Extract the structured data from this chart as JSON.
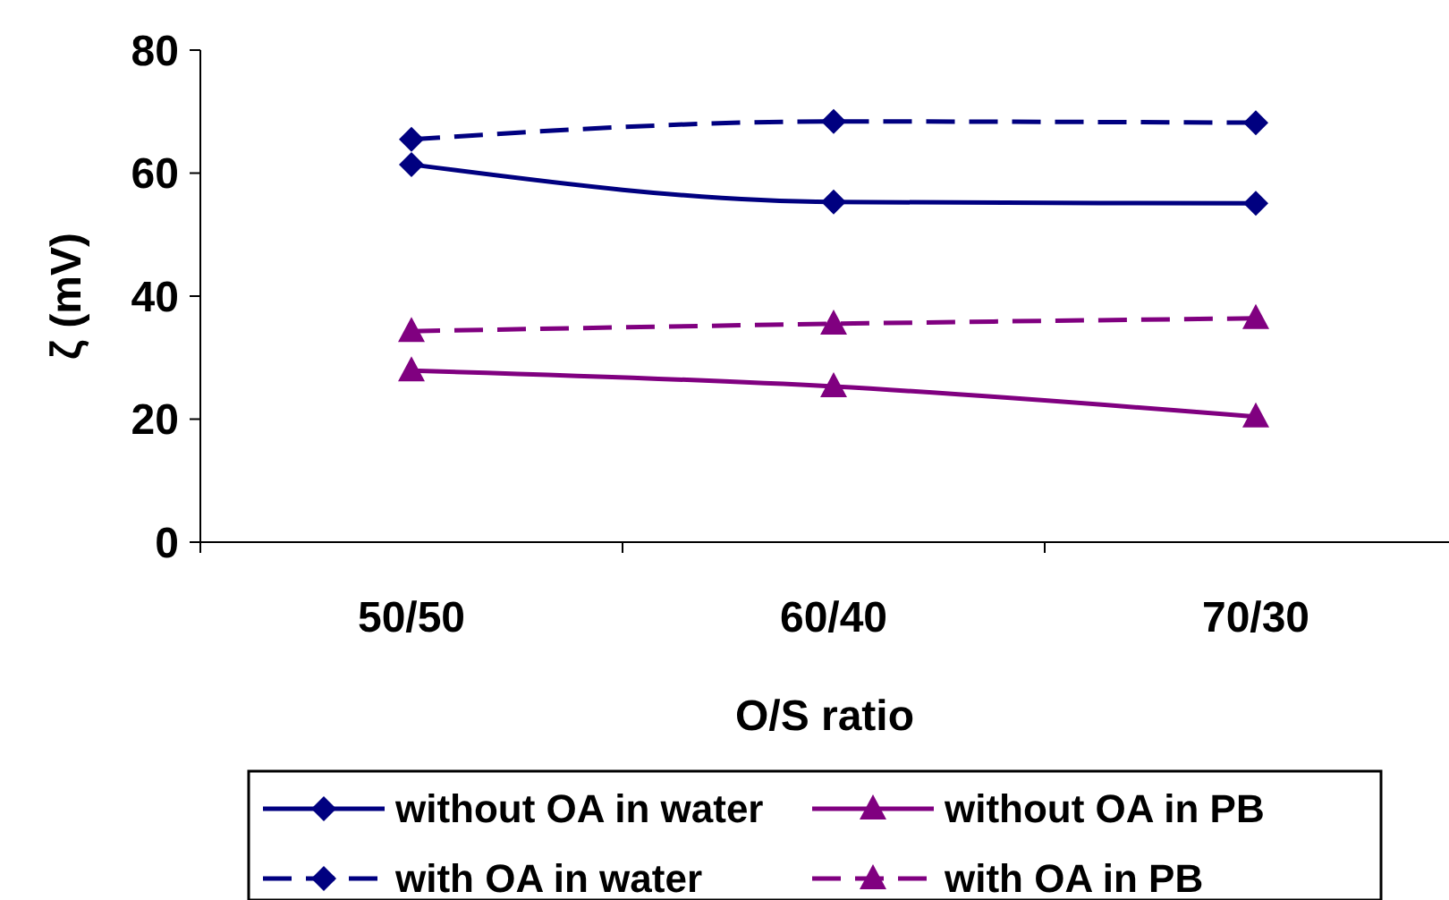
{
  "chart_data": {
    "type": "line",
    "xlabel": "O/S ratio",
    "ylabel": "ζ (mV)",
    "categories": [
      "50/50",
      "60/40",
      "70/30"
    ],
    "ylim": [
      0,
      80
    ],
    "yticks": [
      0,
      20,
      40,
      60,
      80
    ],
    "grid": false,
    "legend": "bottom",
    "series": [
      {
        "name": "without OA in water",
        "color": "#000080",
        "values": [
          61.4,
          55.3,
          55.1
        ],
        "marker": "diamond",
        "line_style": "solid"
      },
      {
        "name": "without OA in PB",
        "color": "#800080",
        "values": [
          27.9,
          25.3,
          20.4
        ],
        "marker": "triangle",
        "line_style": "solid"
      },
      {
        "name": "with OA in water",
        "color": "#000080",
        "values": [
          65.5,
          68.4,
          68.2
        ],
        "marker": "diamond",
        "line_style": "dashed"
      },
      {
        "name": "with OA in PB",
        "color": "#800080",
        "values": [
          34.3,
          35.5,
          36.4
        ],
        "marker": "triangle",
        "line_style": "dashed"
      }
    ]
  }
}
